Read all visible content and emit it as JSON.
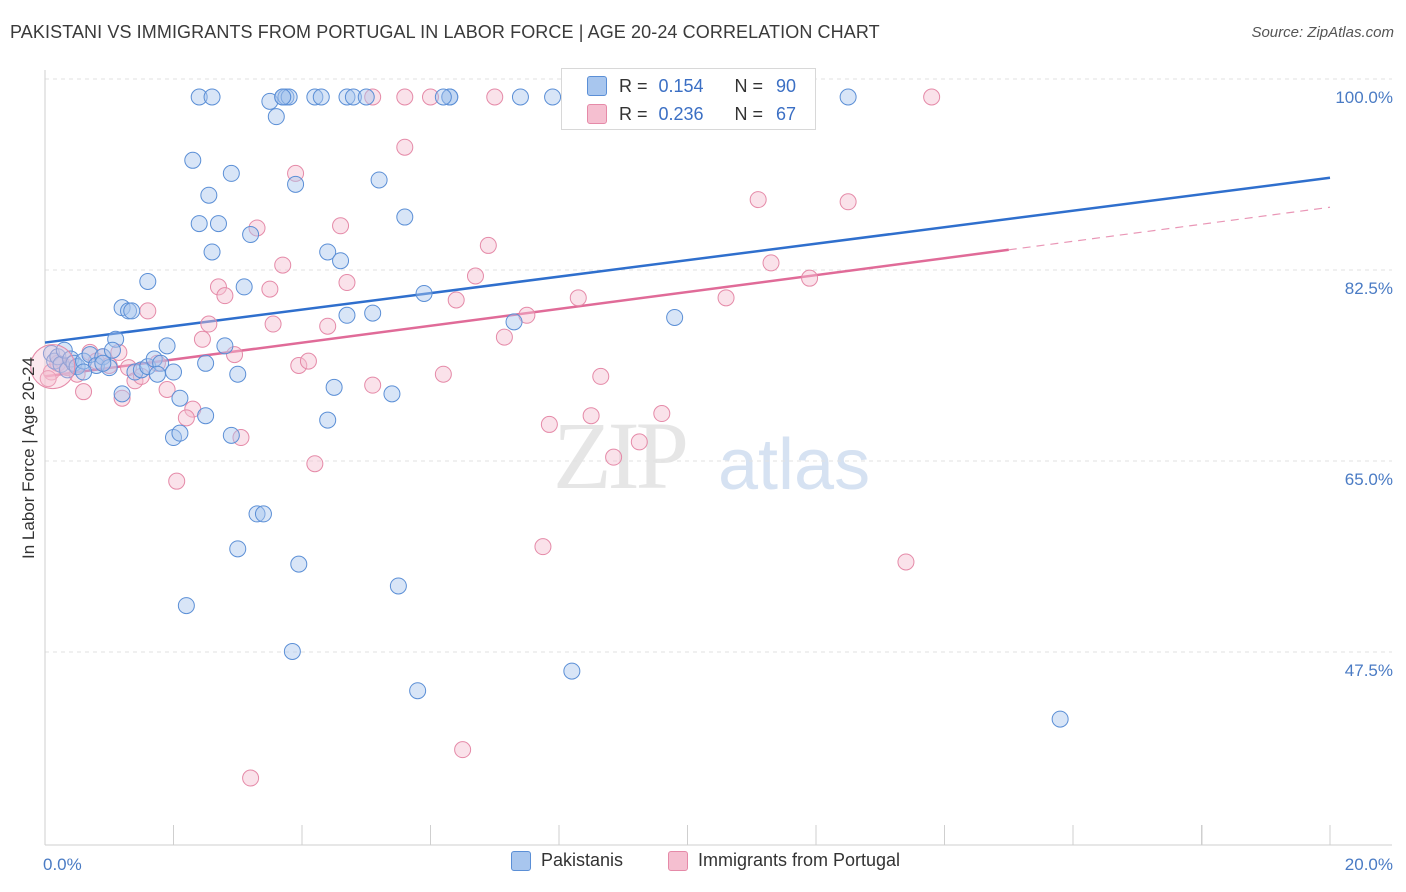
{
  "header": {
    "title": "PAKISTANI VS IMMIGRANTS FROM PORTUGAL IN LABOR FORCE | AGE 20-24 CORRELATION CHART",
    "source": "Source: ZipAtlas.com"
  },
  "watermark": {
    "zip": "ZIP",
    "atlas": "atlas"
  },
  "legend": {
    "series1": {
      "r_label": "R = ",
      "r_value": "0.154",
      "n_label": "N = ",
      "n_value": "90"
    },
    "series2": {
      "r_label": "R = ",
      "r_value": "0.236",
      "n_label": "N = ",
      "n_value": "67"
    }
  },
  "colors": {
    "blue_fill": "#a8c6ee",
    "blue_stroke": "#5b8fd6",
    "blue_line": "#2f6fcd",
    "pink_fill": "#f5bfd0",
    "pink_stroke": "#e58aa8",
    "pink_line": "#e06b98",
    "grid": "#e2e2e2",
    "tick_text": "#4a7bc4"
  },
  "chart_data": {
    "type": "scatter",
    "title": "PAKISTANI VS IMMIGRANTS FROM PORTUGAL IN LABOR FORCE | AGE 20-24 CORRELATION CHART",
    "xlabel": "",
    "ylabel": "In Labor Force | Age 20-24",
    "xlim": [
      0,
      20
    ],
    "ylim": [
      32,
      102
    ],
    "x_tick_labels": [
      "0.0%",
      "20.0%"
    ],
    "y_ticks": [
      47.5,
      65.0,
      82.5,
      100.0
    ],
    "y_tick_labels": [
      "47.5%",
      "65.0%",
      "82.5%",
      "100.0%"
    ],
    "grid": true,
    "legend_position": "bottom",
    "series": [
      {
        "name": "Pakistanis",
        "r": 0.154,
        "n": 90,
        "trend": {
          "x": [
            0,
            20
          ],
          "y": [
            77.5,
            92.6
          ]
        },
        "points": [
          [
            0.1,
            76.5
          ],
          [
            0.15,
            75.8
          ],
          [
            0.2,
            76.2
          ],
          [
            0.25,
            75.5
          ],
          [
            0.3,
            76.8
          ],
          [
            0.35,
            75.0
          ],
          [
            0.4,
            76.0
          ],
          [
            0.45,
            75.6
          ],
          [
            0.5,
            75.3
          ],
          [
            0.6,
            75.8
          ],
          [
            0.7,
            76.4
          ],
          [
            0.8,
            75.4
          ],
          [
            0.9,
            76.2
          ],
          [
            1.0,
            75.2
          ],
          [
            1.1,
            77.8
          ],
          [
            1.2,
            80.7
          ],
          [
            1.3,
            80.4
          ],
          [
            1.2,
            72.8
          ],
          [
            1.4,
            74.8
          ],
          [
            1.5,
            75.0
          ],
          [
            1.6,
            75.3
          ],
          [
            1.7,
            76.0
          ],
          [
            1.8,
            75.6
          ],
          [
            1.9,
            77.2
          ],
          [
            2.0,
            74.8
          ],
          [
            2.1,
            72.4
          ],
          [
            2.0,
            68.8
          ],
          [
            2.1,
            69.2
          ],
          [
            1.6,
            83.1
          ],
          [
            1.35,
            80.4
          ],
          [
            2.3,
            94.2
          ],
          [
            2.4,
            88.4
          ],
          [
            2.55,
            91.0
          ],
          [
            2.6,
            85.8
          ],
          [
            2.7,
            88.4
          ],
          [
            2.8,
            77.2
          ],
          [
            2.9,
            93.0
          ],
          [
            2.5,
            70.8
          ],
          [
            2.5,
            75.6
          ],
          [
            2.9,
            69.0
          ],
          [
            3.0,
            74.6
          ],
          [
            3.1,
            82.6
          ],
          [
            3.2,
            87.4
          ],
          [
            3.3,
            61.8
          ],
          [
            3.4,
            61.8
          ],
          [
            3.0,
            58.6
          ],
          [
            2.2,
            53.4
          ],
          [
            3.5,
            99.6
          ],
          [
            3.6,
            98.2
          ],
          [
            3.7,
            100.0
          ],
          [
            3.75,
            100.0
          ],
          [
            3.8,
            100.0
          ],
          [
            3.9,
            92.0
          ],
          [
            3.95,
            57.2
          ],
          [
            3.85,
            49.2
          ],
          [
            4.2,
            100.0
          ],
          [
            4.4,
            85.8
          ],
          [
            4.6,
            85.0
          ],
          [
            4.7,
            80.0
          ],
          [
            4.5,
            73.4
          ],
          [
            4.4,
            70.4
          ],
          [
            4.7,
            100.0
          ],
          [
            4.8,
            100.0
          ],
          [
            5.1,
            80.2
          ],
          [
            5.2,
            92.4
          ],
          [
            5.4,
            72.8
          ],
          [
            5.5,
            55.2
          ],
          [
            5.6,
            89.0
          ],
          [
            5.8,
            45.6
          ],
          [
            5.9,
            82.0
          ],
          [
            6.3,
            100.0
          ],
          [
            6.3,
            100.0
          ],
          [
            7.3,
            79.4
          ],
          [
            7.4,
            100.0
          ],
          [
            7.9,
            100.0
          ],
          [
            8.2,
            47.4
          ],
          [
            9.2,
            100.0
          ],
          [
            9.8,
            79.8
          ],
          [
            12.5,
            100.0
          ],
          [
            15.8,
            43.0
          ],
          [
            2.4,
            100.0
          ],
          [
            3.7,
            100.0
          ],
          [
            4.3,
            100.0
          ],
          [
            0.6,
            74.8
          ],
          [
            0.9,
            75.6
          ],
          [
            1.05,
            76.8
          ],
          [
            1.75,
            74.6
          ],
          [
            2.6,
            100.0
          ],
          [
            5.0,
            100.0
          ],
          [
            6.2,
            100.0
          ]
        ]
      },
      {
        "name": "Immigrants from Portugal",
        "r": 0.236,
        "n": 67,
        "trend": {
          "x": [
            0,
            15
          ],
          "y": [
            74.4,
            86.0
          ]
        },
        "trend_dashed": {
          "x": [
            15,
            20
          ],
          "y": [
            86.0,
            89.9
          ]
        },
        "points": [
          [
            0.1,
            74.8
          ],
          [
            0.2,
            75.6
          ],
          [
            0.35,
            75.2
          ],
          [
            0.5,
            74.6
          ],
          [
            0.6,
            73.0
          ],
          [
            0.7,
            76.6
          ],
          [
            0.8,
            75.8
          ],
          [
            0.9,
            76.2
          ],
          [
            1.0,
            75.4
          ],
          [
            1.2,
            72.4
          ],
          [
            1.3,
            75.2
          ],
          [
            1.4,
            74.0
          ],
          [
            1.5,
            74.4
          ],
          [
            1.6,
            80.4
          ],
          [
            1.75,
            75.6
          ],
          [
            1.9,
            73.2
          ],
          [
            2.05,
            64.8
          ],
          [
            2.3,
            71.4
          ],
          [
            2.2,
            70.6
          ],
          [
            2.45,
            77.8
          ],
          [
            2.55,
            79.2
          ],
          [
            2.7,
            82.6
          ],
          [
            2.8,
            81.8
          ],
          [
            2.95,
            76.4
          ],
          [
            3.05,
            68.8
          ],
          [
            3.3,
            88.0
          ],
          [
            3.5,
            82.4
          ],
          [
            3.55,
            79.2
          ],
          [
            3.7,
            84.6
          ],
          [
            3.9,
            93.0
          ],
          [
            3.95,
            75.4
          ],
          [
            4.1,
            75.8
          ],
          [
            4.2,
            66.4
          ],
          [
            4.4,
            79.0
          ],
          [
            4.6,
            88.2
          ],
          [
            4.7,
            83.0
          ],
          [
            5.1,
            73.6
          ],
          [
            5.6,
            95.4
          ],
          [
            5.1,
            100.0
          ],
          [
            5.6,
            100.0
          ],
          [
            6.0,
            100.0
          ],
          [
            6.2,
            74.6
          ],
          [
            6.4,
            81.4
          ],
          [
            6.5,
            40.2
          ],
          [
            6.7,
            83.6
          ],
          [
            6.9,
            86.4
          ],
          [
            7.15,
            78.0
          ],
          [
            7.5,
            80.0
          ],
          [
            7.75,
            58.8
          ],
          [
            7.85,
            70.0
          ],
          [
            8.3,
            81.6
          ],
          [
            8.5,
            70.8
          ],
          [
            8.65,
            74.4
          ],
          [
            8.85,
            67.0
          ],
          [
            9.25,
            68.4
          ],
          [
            9.6,
            71.0
          ],
          [
            10.6,
            81.6
          ],
          [
            11.1,
            90.6
          ],
          [
            11.3,
            84.8
          ],
          [
            11.9,
            83.4
          ],
          [
            12.5,
            90.4
          ],
          [
            13.4,
            57.4
          ],
          [
            13.8,
            100.0
          ],
          [
            3.2,
            37.6
          ],
          [
            0.05,
            74.2
          ],
          [
            1.15,
            76.6
          ],
          [
            7.0,
            100.0
          ]
        ]
      }
    ]
  },
  "bottom_legend": {
    "item1": "Pakistanis",
    "item2": "Immigrants from Portugal"
  }
}
